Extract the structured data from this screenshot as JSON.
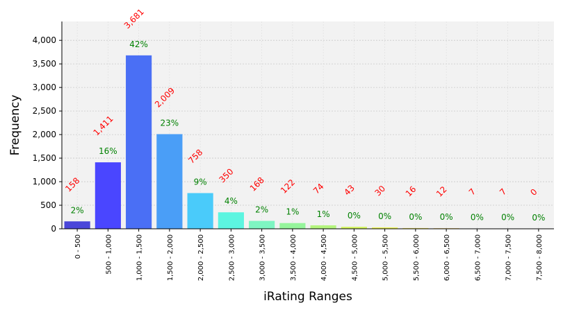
{
  "chart_data": {
    "type": "bar",
    "title": "",
    "xlabel": "iRating Ranges",
    "ylabel": "Frequency",
    "ylim": [
      0,
      4400
    ],
    "yticks": [
      0,
      500,
      1000,
      1500,
      2000,
      2500,
      3000,
      3500,
      4000
    ],
    "ytick_labels": [
      "0",
      "500",
      "1,000",
      "1,500",
      "2,000",
      "2,500",
      "3,000",
      "3,500",
      "4,000"
    ],
    "grid": true,
    "categories": [
      "0 - 500",
      "500 - 1,000",
      "1,000 - 1,500",
      "1,500 - 2,000",
      "2,000 - 2,500",
      "2,500 - 3,000",
      "3,000 - 3,500",
      "3,500 - 4,000",
      "4,000 - 4,500",
      "4,500 - 5,000",
      "5,000 - 5,500",
      "5,500 - 6,000",
      "6,000 - 6,500",
      "6,500 - 7,000",
      "7,000 - 7,500",
      "7,500 - 8,000"
    ],
    "values": [
      158,
      1411,
      3681,
      2009,
      758,
      350,
      168,
      122,
      74,
      43,
      30,
      16,
      12,
      7,
      7,
      0
    ],
    "count_labels": [
      "158",
      "1,411",
      "3,681",
      "2,009",
      "758",
      "350",
      "168",
      "122",
      "74",
      "43",
      "30",
      "16",
      "12",
      "7",
      "7",
      "0"
    ],
    "percent_labels": [
      "2%",
      "16%",
      "42%",
      "23%",
      "9%",
      "4%",
      "2%",
      "1%",
      "1%",
      "0%",
      "0%",
      "0%",
      "0%",
      "0%",
      "0%",
      "0%"
    ],
    "colors": [
      "#4a46d9",
      "#4a46ff",
      "#4a6ff5",
      "#4a9ef7",
      "#4acbfa",
      "#5cf5e0",
      "#7ef5c2",
      "#96f59c",
      "#b4f57e",
      "#d4f562",
      "#eef558",
      "#f5e85a",
      "#f5c85a",
      "#f5a85a",
      "#f5885a",
      "#f5685a"
    ]
  }
}
